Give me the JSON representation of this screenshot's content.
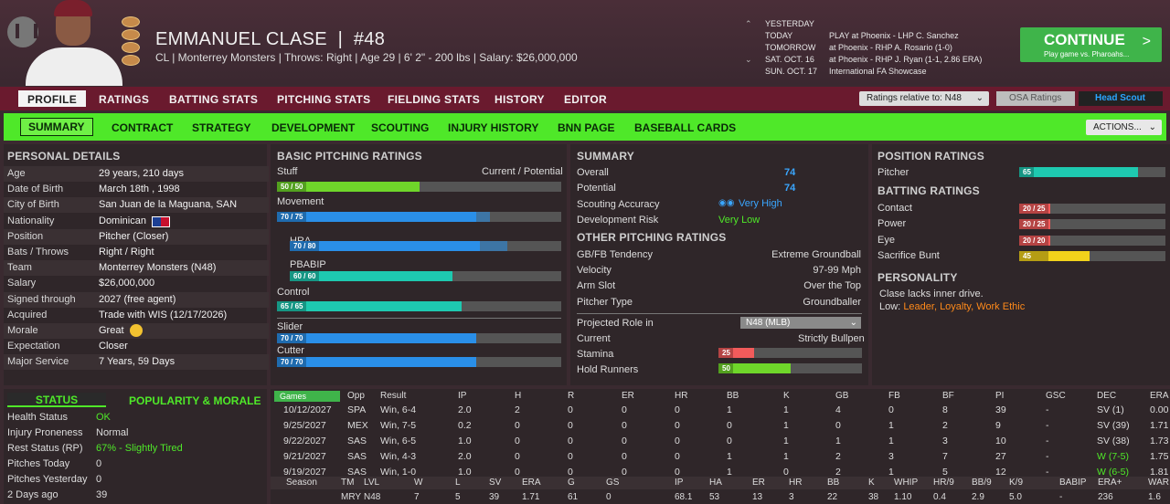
{
  "player": {
    "name": "EMMANUEL CLASE",
    "number": "#48",
    "info": "CL | Monterrey Monsters | Throws: Right | Age 29 | 6' 2\" - 200 lbs | Salary: $26,000,000"
  },
  "schedule": [
    {
      "day": "YESTERDAY",
      "game": ""
    },
    {
      "day": "TODAY",
      "game": "PLAY at Phoenix - LHP C. Sanchez"
    },
    {
      "day": "TOMORROW",
      "game": "at Phoenix - RHP A. Rosario (1-0)"
    },
    {
      "day": "SAT. OCT. 16",
      "game": "at Phoenix - RHP J. Ryan (1-1, 2.86 ERA)"
    },
    {
      "day": "SUN. OCT. 17",
      "game": "International FA Showcase"
    }
  ],
  "continue": {
    "label": "CONTINUE",
    "sub": "Play game vs. Pharoahs...",
    "arrow": ">"
  },
  "nav1": [
    "PROFILE",
    "RATINGS",
    "BATTING STATS",
    "PITCHING STATS",
    "FIELDING STATS",
    "HISTORY",
    "EDITOR"
  ],
  "ratings_select": "Ratings relative to: N48",
  "osa": "OSA Ratings",
  "head_scout": "Head Scout",
  "nav2": [
    "SUMMARY",
    "CONTRACT",
    "STRATEGY",
    "DEVELOPMENT",
    "SCOUTING",
    "INJURY HISTORY",
    "BNN PAGE",
    "BASEBALL CARDS"
  ],
  "actions": "ACTIONS...",
  "personal": {
    "title": "PERSONAL DETAILS",
    "rows": [
      [
        "Age",
        "29 years, 210 days"
      ],
      [
        "Date of Birth",
        "March 18th , 1998"
      ],
      [
        "City of Birth",
        "San Juan de la Maguana, SAN"
      ],
      [
        "Nationality",
        "Dominican"
      ],
      [
        "Position",
        "Pitcher (Closer)"
      ],
      [
        "Bats / Throws",
        "Right / Right"
      ],
      [
        "Team",
        "Monterrey Monsters (N48)"
      ],
      [
        "Salary",
        "$26,000,000"
      ],
      [
        "Signed through",
        "2027 (free agent)"
      ],
      [
        "Acquired",
        "Trade with WIS (12/17/2026)"
      ],
      [
        "Morale",
        "Great"
      ],
      [
        "Expectation",
        "Closer"
      ],
      [
        "Major Service",
        "7 Years, 59 Days"
      ]
    ]
  },
  "basic": {
    "title": "BASIC PITCHING RATINGS",
    "stuff": "Stuff",
    "cp": "Current / Potential",
    "items": [
      {
        "label": "",
        "tag": "50 / 50",
        "cur": 0.5,
        "pot": 0.5,
        "color": "#6fd62a"
      },
      {
        "label": "Movement",
        "tag": "70 / 75",
        "cur": 0.7,
        "pot": 0.75,
        "color": "#2a8fe8"
      },
      {
        "label": "HRA",
        "tag": "70 / 80",
        "cur": 0.7,
        "pot": 0.8,
        "color": "#2a8fe8"
      },
      {
        "label": "PBABIP",
        "tag": "60 / 60",
        "cur": 0.6,
        "pot": 0.6,
        "color": "#1ec9b0"
      },
      {
        "label": "Control",
        "tag": "65 / 65",
        "cur": 0.65,
        "pot": 0.65,
        "color": "#1ec9b0"
      },
      {
        "label": "Slider",
        "tag": "70 / 70",
        "cur": 0.7,
        "pot": 0.7,
        "color": "#2a8fe8"
      },
      {
        "label": "Cutter",
        "tag": "70 / 70",
        "cur": 0.7,
        "pot": 0.7,
        "color": "#2a8fe8"
      }
    ]
  },
  "summary": {
    "title": "SUMMARY",
    "rows": [
      [
        "Overall",
        "74"
      ],
      [
        "Potential",
        "74"
      ],
      [
        "Scouting Accuracy",
        "Very High"
      ],
      [
        "Development Risk",
        "Very Low"
      ]
    ]
  },
  "other": {
    "title": "OTHER PITCHING RATINGS",
    "rows": [
      [
        "GB/FB Tendency",
        "Extreme Groundball"
      ],
      [
        "Velocity",
        "97-99 Mph"
      ],
      [
        "Arm Slot",
        "Over the Top"
      ],
      [
        "Pitcher Type",
        "Groundballer"
      ]
    ],
    "role_label": "Projected Role in",
    "role_value": "N48 (MLB)",
    "current_label": "Current",
    "current_value": "Strictly Bullpen",
    "stamina_label": "Stamina",
    "stamina": 25,
    "hold_label": "Hold Runners",
    "hold": 50
  },
  "position": {
    "title": "POSITION RATINGS",
    "pitcher_label": "Pitcher",
    "pitcher": 65
  },
  "batting": {
    "title": "BATTING RATINGS",
    "rows": [
      {
        "label": "Contact",
        "tag": "20 / 25",
        "v": 0.2
      },
      {
        "label": "Power",
        "tag": "20 / 25",
        "v": 0.2
      },
      {
        "label": "Eye",
        "tag": "20 / 20",
        "v": 0.2
      },
      {
        "label": "Sacrifice Bunt",
        "tag": "45",
        "v": 0.45
      }
    ]
  },
  "personality": {
    "title": "PERSONALITY",
    "line1": "Clase lacks inner drive.",
    "low_label": "Low:",
    "low": "Leader, Loyalty, Work Ethic"
  },
  "status": {
    "tab1": "STATUS",
    "tab2": "POPULARITY & MORALE",
    "rows": [
      [
        "Health Status",
        "OK"
      ],
      [
        "Injury Proneness",
        "Normal"
      ],
      [
        "Rest Status (RP)",
        "67% - Slightly Tired"
      ],
      [
        "Pitches Today",
        "0"
      ],
      [
        "Pitches Yesterday",
        "0"
      ],
      [
        "2 Days ago",
        "39"
      ]
    ]
  },
  "games": {
    "select": "Games",
    "headers": [
      "Opp",
      "Result",
      "IP",
      "H",
      "R",
      "ER",
      "HR",
      "BB",
      "K",
      "GB",
      "FB",
      "BF",
      "PI",
      "GSC",
      "DEC",
      "ERA"
    ],
    "rows": [
      [
        "10/12/2027",
        "SPA",
        "Win, 6-4",
        "2.0",
        "2",
        "0",
        "0",
        "0",
        "1",
        "1",
        "4",
        "0",
        "8",
        "39",
        "-",
        "SV (1)",
        "0.00"
      ],
      [
        "9/25/2027",
        "MEX",
        "Win, 7-5",
        "0.2",
        "0",
        "0",
        "0",
        "0",
        "0",
        "1",
        "0",
        "1",
        "2",
        "9",
        "-",
        "SV (39)",
        "1.71"
      ],
      [
        "9/22/2027",
        "SAS",
        "Win, 6-5",
        "1.0",
        "0",
        "0",
        "0",
        "0",
        "0",
        "1",
        "1",
        "1",
        "3",
        "10",
        "-",
        "SV (38)",
        "1.73"
      ],
      [
        "9/21/2027",
        "SAS",
        "Win, 4-3",
        "2.0",
        "0",
        "0",
        "0",
        "0",
        "1",
        "1",
        "2",
        "3",
        "7",
        "27",
        "-",
        "W (7-5)",
        "1.75"
      ],
      [
        "9/19/2027",
        "SAS",
        "Win, 1-0",
        "1.0",
        "0",
        "0",
        "0",
        "0",
        "1",
        "0",
        "2",
        "1",
        "5",
        "12",
        "-",
        "W (6-5)",
        "1.81"
      ]
    ],
    "season_headers": [
      "Season",
      "TM",
      "LVL",
      "W",
      "L",
      "SV",
      "ERA",
      "G",
      "GS",
      "IP",
      "HA",
      "ER",
      "HR",
      "BB",
      "K",
      "WHIP",
      "HR/9",
      "BB/9",
      "K/9",
      "BABIP",
      "ERA+",
      "WAR"
    ],
    "season_row": [
      "",
      "MRY",
      "N48",
      "7",
      "5",
      "39",
      "1.71",
      "61",
      "0",
      "68.1",
      "53",
      "13",
      "3",
      "22",
      "38",
      "1.10",
      "0.4",
      "2.9",
      "5.0",
      "-",
      "236",
      "1.6"
    ]
  }
}
